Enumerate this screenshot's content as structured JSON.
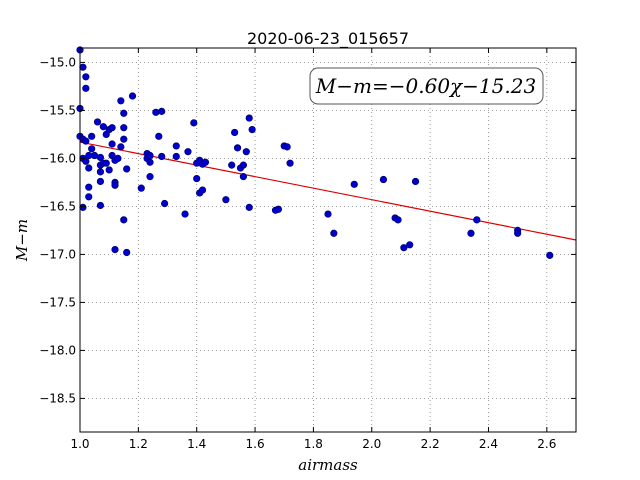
{
  "chart_data": {
    "type": "scatter",
    "title": "2020-06-23_015657",
    "xlabel": "airmass",
    "ylabel": "M−m",
    "xlim": [
      1.0,
      2.7
    ],
    "ylim": [
      -18.85,
      -14.85
    ],
    "y_inverted": true,
    "grid": true,
    "grid_style": "dotted",
    "x_ticks": [
      1.0,
      1.2,
      1.4,
      1.6,
      1.8,
      2.0,
      2.2,
      2.4,
      2.6
    ],
    "x_tick_labels": [
      "1.0",
      "1.2",
      "1.4",
      "1.6",
      "1.8",
      "2.0",
      "2.2",
      "2.4",
      "2.6"
    ],
    "y_ticks": [
      -15.0,
      -15.5,
      -16.0,
      -16.5,
      -17.0,
      -17.5,
      -18.0,
      -18.5
    ],
    "y_tick_labels": [
      "−15.0",
      "−15.5",
      "−16.0",
      "−16.5",
      "−17.0",
      "−17.5",
      "−18.0",
      "−18.5"
    ],
    "annotation": "M−m=−0.60χ−15.23",
    "marker_color": "#0000cc",
    "marker_edge_color": "#000066",
    "fit_color": "#dd0000",
    "fit": {
      "slope": -0.6,
      "intercept": -15.23
    },
    "points": [
      [
        1.0,
        -14.87
      ],
      [
        1.01,
        -15.05
      ],
      [
        1.02,
        -15.15
      ],
      [
        1.02,
        -15.27
      ],
      [
        1.0,
        -15.48
      ],
      [
        1.0,
        -15.77
      ],
      [
        1.01,
        -15.8
      ],
      [
        1.02,
        -15.82
      ],
      [
        1.04,
        -15.77
      ],
      [
        1.06,
        -15.62
      ],
      [
        1.08,
        -15.67
      ],
      [
        1.09,
        -15.75
      ],
      [
        1.1,
        -15.7
      ],
      [
        1.11,
        -15.68
      ],
      [
        1.11,
        -15.85
      ],
      [
        1.04,
        -15.9
      ],
      [
        1.03,
        -15.97
      ],
      [
        1.05,
        -15.97
      ],
      [
        1.07,
        -15.99
      ],
      [
        1.01,
        -16.0
      ],
      [
        1.02,
        -16.03
      ],
      [
        1.03,
        -16.1
      ],
      [
        1.07,
        -16.07
      ],
      [
        1.07,
        -16.14
      ],
      [
        1.08,
        -16.05
      ],
      [
        1.09,
        -16.05
      ],
      [
        1.1,
        -16.12
      ],
      [
        1.11,
        -15.97
      ],
      [
        1.12,
        -16.02
      ],
      [
        1.13,
        -16.0
      ],
      [
        1.03,
        -16.3
      ],
      [
        1.03,
        -16.4
      ],
      [
        1.01,
        -16.51
      ],
      [
        1.07,
        -16.24
      ],
      [
        1.07,
        -16.49
      ],
      [
        1.12,
        -16.25
      ],
      [
        1.12,
        -16.28
      ],
      [
        1.14,
        -15.4
      ],
      [
        1.15,
        -15.53
      ],
      [
        1.15,
        -15.68
      ],
      [
        1.15,
        -15.8
      ],
      [
        1.14,
        -15.88
      ],
      [
        1.16,
        -16.11
      ],
      [
        1.15,
        -16.64
      ],
      [
        1.12,
        -16.95
      ],
      [
        1.16,
        -16.98
      ],
      [
        1.18,
        -15.35
      ],
      [
        1.21,
        -16.31
      ],
      [
        1.23,
        -15.95
      ],
      [
        1.23,
        -16.0
      ],
      [
        1.24,
        -15.97
      ],
      [
        1.24,
        -16.04
      ],
      [
        1.24,
        -16.19
      ],
      [
        1.26,
        -15.52
      ],
      [
        1.27,
        -15.77
      ],
      [
        1.28,
        -15.51
      ],
      [
        1.28,
        -15.98
      ],
      [
        1.29,
        -16.47
      ],
      [
        1.33,
        -15.87
      ],
      [
        1.33,
        -15.98
      ],
      [
        1.36,
        -16.58
      ],
      [
        1.37,
        -15.93
      ],
      [
        1.39,
        -15.63
      ],
      [
        1.4,
        -16.05
      ],
      [
        1.4,
        -16.21
      ],
      [
        1.41,
        -16.02
      ],
      [
        1.41,
        -16.36
      ],
      [
        1.42,
        -16.06
      ],
      [
        1.42,
        -16.33
      ],
      [
        1.43,
        -16.04
      ],
      [
        1.5,
        -16.43
      ],
      [
        1.52,
        -16.07
      ],
      [
        1.53,
        -15.73
      ],
      [
        1.54,
        -15.89
      ],
      [
        1.55,
        -16.1
      ],
      [
        1.56,
        -16.07
      ],
      [
        1.56,
        -16.19
      ],
      [
        1.57,
        -15.93
      ],
      [
        1.58,
        -15.58
      ],
      [
        1.59,
        -15.7
      ],
      [
        1.58,
        -16.51
      ],
      [
        1.67,
        -16.54
      ],
      [
        1.68,
        -16.53
      ],
      [
        1.7,
        -15.87
      ],
      [
        1.71,
        -15.88
      ],
      [
        1.72,
        -16.05
      ],
      [
        1.85,
        -16.58
      ],
      [
        1.87,
        -16.78
      ],
      [
        1.94,
        -16.27
      ],
      [
        2.04,
        -16.22
      ],
      [
        2.08,
        -16.62
      ],
      [
        2.09,
        -16.64
      ],
      [
        2.11,
        -16.93
      ],
      [
        2.13,
        -16.9
      ],
      [
        2.15,
        -16.24
      ],
      [
        2.34,
        -16.78
      ],
      [
        2.36,
        -16.64
      ],
      [
        2.5,
        -16.75
      ],
      [
        2.5,
        -16.78
      ],
      [
        2.61,
        -17.01
      ]
    ]
  }
}
